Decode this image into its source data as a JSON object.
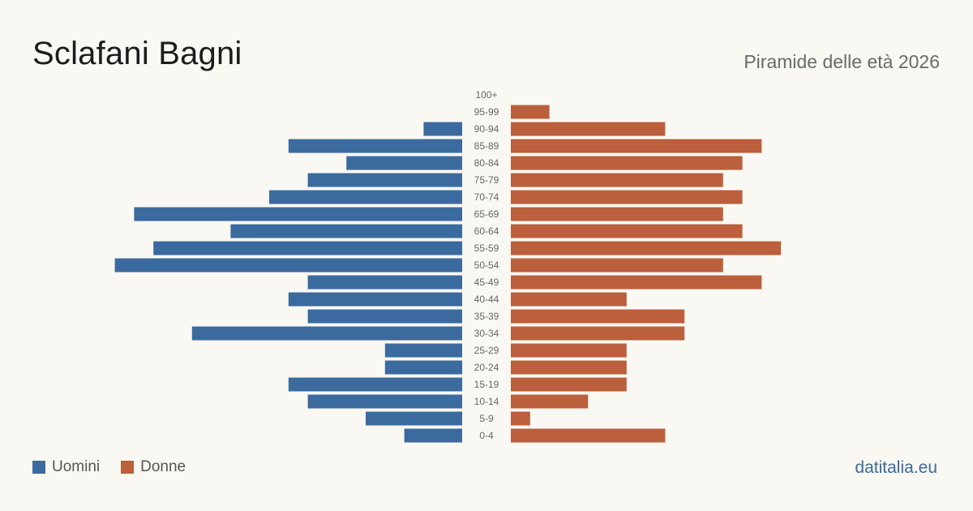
{
  "header": {
    "title": "Sclafani Bagni",
    "subtitle": "Piramide delle età 2026"
  },
  "legend": {
    "men_label": "Uomini",
    "women_label": "Donne"
  },
  "brand": "datitalia.eu",
  "colors": {
    "men": "#3b6a9e",
    "women": "#bb5f3c",
    "background": "#faf8f3"
  },
  "chart_data": {
    "type": "bar",
    "orientation": "horizontal-pyramid",
    "categories": [
      "100+",
      "95-99",
      "90-94",
      "85-89",
      "80-84",
      "75-79",
      "70-74",
      "65-69",
      "60-64",
      "55-59",
      "50-54",
      "45-49",
      "40-44",
      "35-39",
      "30-34",
      "25-29",
      "20-24",
      "15-19",
      "10-14",
      "5-9",
      "0-4"
    ],
    "series": [
      {
        "name": "Uomini",
        "values": [
          0,
          0,
          2,
          9,
          6,
          8,
          10,
          17,
          12,
          16,
          18,
          8,
          9,
          8,
          14,
          4,
          4,
          9,
          8,
          5,
          3
        ]
      },
      {
        "name": "Donne",
        "values": [
          0,
          2,
          8,
          13,
          12,
          11,
          12,
          11,
          12,
          14,
          11,
          13,
          6,
          9,
          9,
          6,
          6,
          6,
          4,
          1,
          8
        ]
      }
    ],
    "legend_position": "bottom-left",
    "grid": false
  }
}
